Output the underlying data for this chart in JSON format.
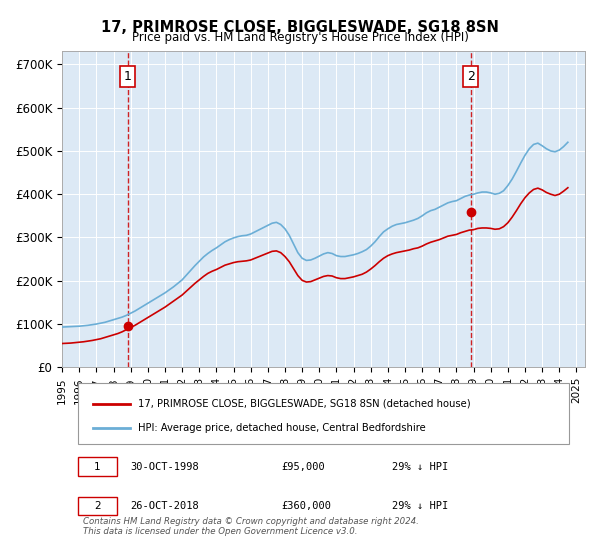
{
  "title": "17, PRIMROSE CLOSE, BIGGLESWADE, SG18 8SN",
  "subtitle": "Price paid vs. HM Land Registry's House Price Index (HPI)",
  "background_color": "#dce9f5",
  "plot_bg_color": "#dce9f5",
  "ylabel_ticks": [
    "£0",
    "£100K",
    "£200K",
    "£300K",
    "£400K",
    "£500K",
    "£600K",
    "£700K"
  ],
  "ytick_values": [
    0,
    100000,
    200000,
    300000,
    400000,
    500000,
    600000,
    700000
  ],
  "ylim": [
    0,
    730000
  ],
  "xlim_start": 1995.5,
  "xlim_end": 2025.5,
  "xticks": [
    1995,
    1996,
    1997,
    1998,
    1999,
    2000,
    2001,
    2002,
    2003,
    2004,
    2005,
    2006,
    2007,
    2008,
    2009,
    2010,
    2011,
    2012,
    2013,
    2014,
    2015,
    2016,
    2017,
    2018,
    2019,
    2020,
    2021,
    2022,
    2023,
    2024,
    2025
  ],
  "hpi_color": "#6baed6",
  "price_color": "#cc0000",
  "marker_color": "#cc0000",
  "vline_color": "#cc0000",
  "annotation_box_color": "#ffffff",
  "annotation_border_color": "#cc0000",
  "purchase1_x": 1998.83,
  "purchase1_y": 95000,
  "purchase1_label": "1",
  "purchase2_x": 2018.83,
  "purchase2_y": 360000,
  "purchase2_label": "2",
  "legend_label_price": "17, PRIMROSE CLOSE, BIGGLESWADE, SG18 8SN (detached house)",
  "legend_label_hpi": "HPI: Average price, detached house, Central Bedfordshire",
  "table_row1": "1    30-OCT-1998         £95,000        29% ↓ HPI",
  "table_row2": "2    26-OCT-2018         £360,000      29% ↓ HPI",
  "footnote": "Contains HM Land Registry data © Crown copyright and database right 2024.\nThis data is licensed under the Open Government Licence v3.0.",
  "hpi_data": {
    "years": [
      1995,
      1995.25,
      1995.5,
      1995.75,
      1996,
      1996.25,
      1996.5,
      1996.75,
      1997,
      1997.25,
      1997.5,
      1997.75,
      1998,
      1998.25,
      1998.5,
      1998.75,
      1999,
      1999.25,
      1999.5,
      1999.75,
      2000,
      2000.25,
      2000.5,
      2000.75,
      2001,
      2001.25,
      2001.5,
      2001.75,
      2002,
      2002.25,
      2002.5,
      2002.75,
      2003,
      2003.25,
      2003.5,
      2003.75,
      2004,
      2004.25,
      2004.5,
      2004.75,
      2005,
      2005.25,
      2005.5,
      2005.75,
      2006,
      2006.25,
      2006.5,
      2006.75,
      2007,
      2007.25,
      2007.5,
      2007.75,
      2008,
      2008.25,
      2008.5,
      2008.75,
      2009,
      2009.25,
      2009.5,
      2009.75,
      2010,
      2010.25,
      2010.5,
      2010.75,
      2011,
      2011.25,
      2011.5,
      2011.75,
      2012,
      2012.25,
      2012.5,
      2012.75,
      2013,
      2013.25,
      2013.5,
      2013.75,
      2014,
      2014.25,
      2014.5,
      2014.75,
      2015,
      2015.25,
      2015.5,
      2015.75,
      2016,
      2016.25,
      2016.5,
      2016.75,
      2017,
      2017.25,
      2017.5,
      2017.75,
      2018,
      2018.25,
      2018.5,
      2018.75,
      2019,
      2019.25,
      2019.5,
      2019.75,
      2020,
      2020.25,
      2020.5,
      2020.75,
      2021,
      2021.25,
      2021.5,
      2021.75,
      2022,
      2022.25,
      2022.5,
      2022.75,
      2023,
      2023.25,
      2023.5,
      2023.75,
      2024,
      2024.25,
      2024.5
    ],
    "values": [
      93000,
      93500,
      94000,
      94500,
      95000,
      96000,
      97000,
      98500,
      100000,
      102000,
      104000,
      107000,
      110000,
      113000,
      116000,
      120000,
      125000,
      130000,
      136000,
      142000,
      148000,
      154000,
      160000,
      166000,
      172000,
      179000,
      186000,
      194000,
      202000,
      213000,
      224000,
      235000,
      245000,
      255000,
      263000,
      270000,
      276000,
      283000,
      290000,
      295000,
      299000,
      302000,
      304000,
      305000,
      308000,
      313000,
      318000,
      323000,
      328000,
      333000,
      335000,
      330000,
      320000,
      305000,
      285000,
      265000,
      252000,
      247000,
      248000,
      252000,
      257000,
      262000,
      265000,
      263000,
      258000,
      256000,
      256000,
      258000,
      260000,
      263000,
      267000,
      272000,
      280000,
      290000,
      302000,
      313000,
      320000,
      326000,
      330000,
      332000,
      334000,
      337000,
      340000,
      344000,
      350000,
      357000,
      362000,
      365000,
      370000,
      375000,
      380000,
      383000,
      385000,
      390000,
      395000,
      398000,
      400000,
      403000,
      405000,
      405000,
      403000,
      400000,
      402000,
      408000,
      420000,
      435000,
      453000,
      472000,
      490000,
      505000,
      515000,
      518000,
      512000,
      505000,
      500000,
      498000,
      502000,
      510000,
      520000
    ]
  },
  "price_data": {
    "years": [
      1995,
      1995.25,
      1995.5,
      1995.75,
      1996,
      1996.25,
      1996.5,
      1996.75,
      1997,
      1997.25,
      1997.5,
      1997.75,
      1998,
      1998.25,
      1998.5,
      1998.75,
      1999,
      1999.25,
      1999.5,
      1999.75,
      2000,
      2000.25,
      2000.5,
      2000.75,
      2001,
      2001.25,
      2001.5,
      2001.75,
      2002,
      2002.25,
      2002.5,
      2002.75,
      2003,
      2003.25,
      2003.5,
      2003.75,
      2004,
      2004.25,
      2004.5,
      2004.75,
      2005,
      2005.25,
      2005.5,
      2005.75,
      2006,
      2006.25,
      2006.5,
      2006.75,
      2007,
      2007.25,
      2007.5,
      2007.75,
      2008,
      2008.25,
      2008.5,
      2008.75,
      2009,
      2009.25,
      2009.5,
      2009.75,
      2010,
      2010.25,
      2010.5,
      2010.75,
      2011,
      2011.25,
      2011.5,
      2011.75,
      2012,
      2012.25,
      2012.5,
      2012.75,
      2013,
      2013.25,
      2013.5,
      2013.75,
      2014,
      2014.25,
      2014.5,
      2014.75,
      2015,
      2015.25,
      2015.5,
      2015.75,
      2016,
      2016.25,
      2016.5,
      2016.75,
      2017,
      2017.25,
      2017.5,
      2017.75,
      2018,
      2018.25,
      2018.5,
      2018.75,
      2019,
      2019.25,
      2019.5,
      2019.75,
      2020,
      2020.25,
      2020.5,
      2020.75,
      2021,
      2021.25,
      2021.5,
      2021.75,
      2022,
      2022.25,
      2022.5,
      2022.75,
      2023,
      2023.25,
      2023.5,
      2023.75,
      2024,
      2024.25,
      2024.5
    ],
    "values": [
      55000,
      55500,
      56000,
      57000,
      58000,
      59000,
      60500,
      62000,
      64000,
      66000,
      69000,
      72000,
      75000,
      78000,
      82000,
      87000,
      92000,
      97000,
      103000,
      109000,
      115000,
      121000,
      127000,
      133000,
      139000,
      146000,
      153000,
      160000,
      167000,
      176000,
      185000,
      194000,
      202000,
      210000,
      217000,
      222000,
      226000,
      231000,
      236000,
      239000,
      242000,
      244000,
      245000,
      246000,
      248000,
      252000,
      256000,
      260000,
      264000,
      268000,
      269000,
      265000,
      256000,
      244000,
      228000,
      212000,
      201000,
      197000,
      198000,
      202000,
      206000,
      210000,
      212000,
      211000,
      207000,
      205000,
      205000,
      207000,
      209000,
      212000,
      215000,
      220000,
      227000,
      235000,
      244000,
      252000,
      258000,
      262000,
      265000,
      267000,
      269000,
      271000,
      274000,
      276000,
      280000,
      285000,
      289000,
      292000,
      295000,
      299000,
      303000,
      305000,
      307000,
      311000,
      314000,
      317000,
      318000,
      321000,
      322000,
      322000,
      321000,
      319000,
      320000,
      325000,
      334000,
      347000,
      362000,
      378000,
      392000,
      403000,
      411000,
      414000,
      410000,
      404000,
      400000,
      397000,
      400000,
      407000,
      415000
    ]
  }
}
